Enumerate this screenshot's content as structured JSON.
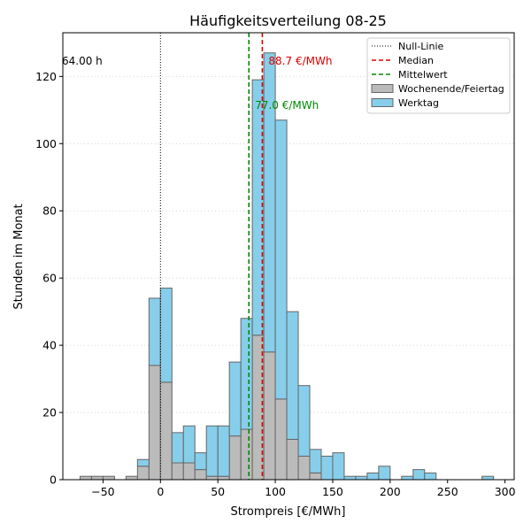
{
  "chart_data": {
    "type": "bar",
    "title": "Häufigkeitsverteilung 08-25",
    "xlabel": "Strompreis [€/MWh]",
    "ylabel": "Stunden im Monat",
    "xlim": [
      -85,
      308
    ],
    "ylim": [
      0,
      133
    ],
    "bin_width": 10,
    "x_ticks": [
      -50,
      0,
      50,
      100,
      150,
      200,
      250,
      300
    ],
    "y_ticks": [
      0,
      20,
      40,
      60,
      80,
      100,
      120
    ],
    "grid": "y-dotted",
    "legend_position": "top-right",
    "bin_starts": [
      -70,
      -60,
      -50,
      -40,
      -30,
      -20,
      -10,
      0,
      10,
      20,
      30,
      40,
      50,
      60,
      70,
      80,
      90,
      100,
      110,
      120,
      130,
      140,
      150,
      160,
      170,
      180,
      190,
      200,
      210,
      220,
      230,
      240,
      250,
      260,
      270,
      280
    ],
    "series": [
      {
        "name": "Wochenende/Feiertag",
        "color": "#bbbbbb",
        "values": [
          1,
          1,
          1,
          0,
          1,
          4,
          34,
          29,
          5,
          5,
          3,
          1,
          1,
          13,
          15,
          43,
          38,
          24,
          12,
          7,
          2,
          0,
          0,
          0,
          0,
          0,
          0,
          0,
          0,
          0,
          0,
          0,
          0,
          0,
          0,
          0
        ]
      },
      {
        "name": "Werktag",
        "color": "#87ceeb",
        "values": [
          0,
          0,
          0,
          0,
          0,
          2,
          20,
          28,
          9,
          11,
          5,
          15,
          15,
          22,
          33,
          76,
          89,
          83,
          38,
          21,
          7,
          7,
          8,
          1,
          1,
          2,
          4,
          0,
          1,
          3,
          2,
          0,
          0,
          0,
          0,
          1
        ]
      }
    ],
    "reference_lines": [
      {
        "name": "Null-Linie",
        "x": 0,
        "color": "#000000",
        "style": "dotted",
        "annotation": "64.00 h"
      },
      {
        "name": "Median",
        "x": 88.7,
        "color": "#dd0000",
        "style": "dashed",
        "annotation": "88.7 €/MWh"
      },
      {
        "name": "Mittelwert",
        "x": 77.0,
        "color": "#008800",
        "style": "dashed",
        "annotation": "77.0 €/MWh"
      }
    ],
    "legend": [
      "Null-Linie",
      "Median",
      "Mittelwert",
      "Wochenende/Feiertag",
      "Werktag"
    ]
  }
}
